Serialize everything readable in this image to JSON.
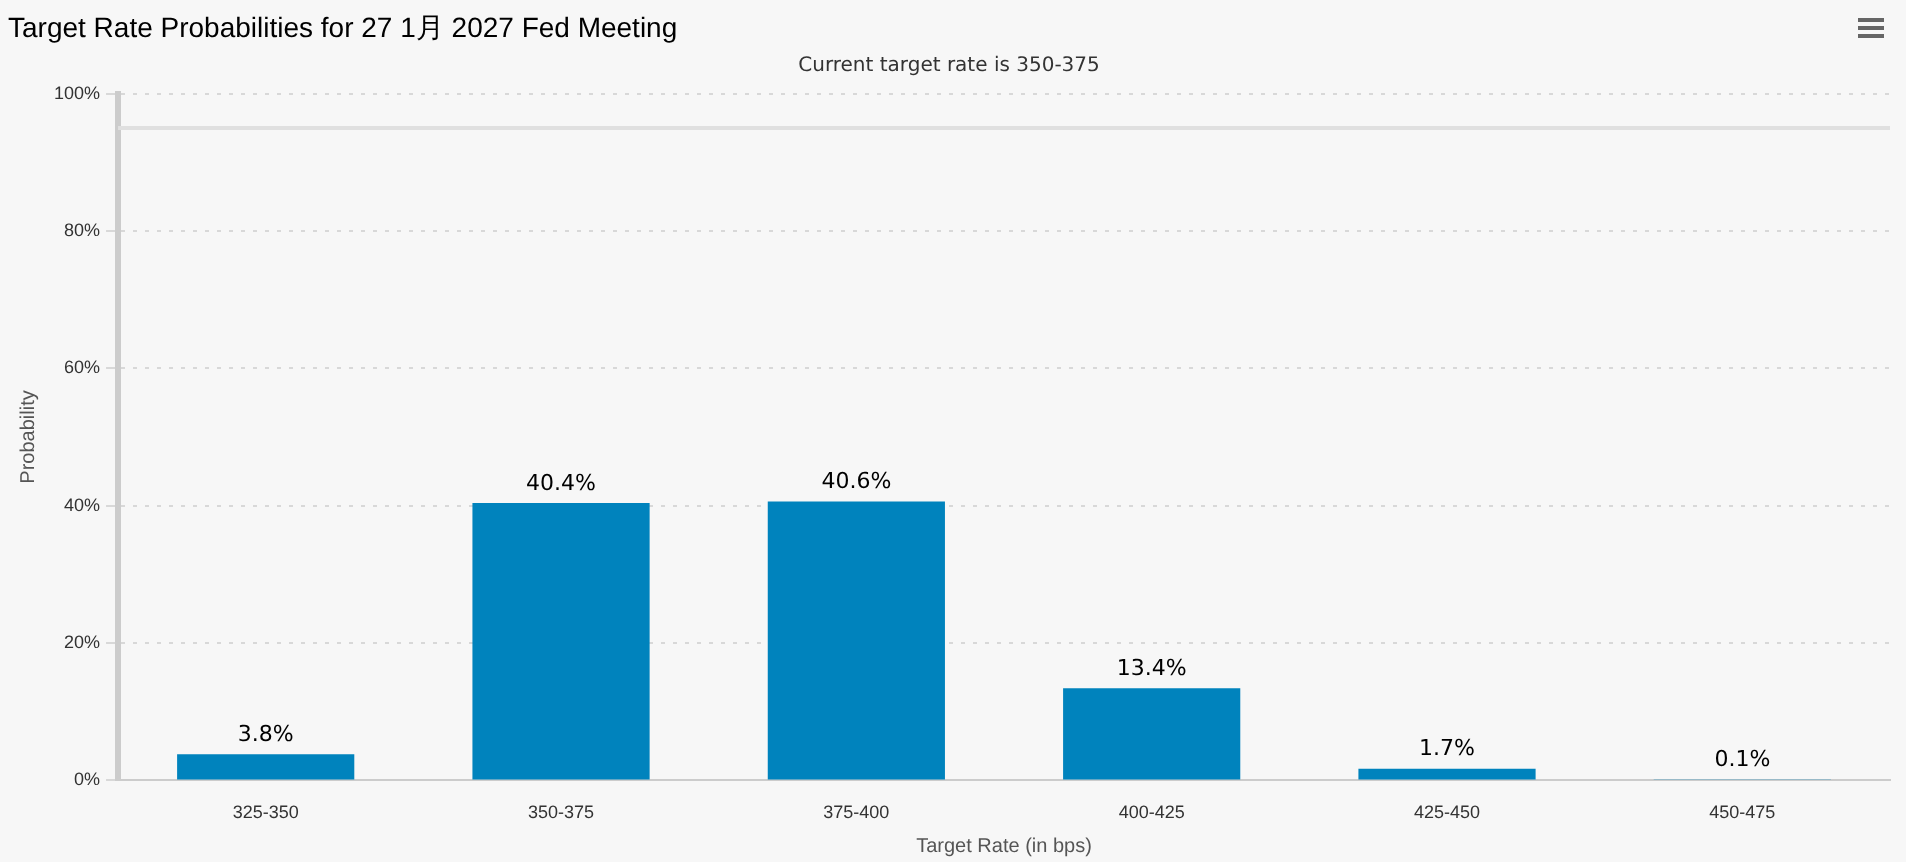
{
  "chart_data": {
    "type": "bar",
    "title": "Target Rate Probabilities for 27 1月 2027 Fed Meeting",
    "subtitle": "Current target rate is 350-375",
    "xlabel": "Target Rate (in bps)",
    "ylabel": "Probability",
    "categories": [
      "325-350",
      "350-375",
      "375-400",
      "400-425",
      "425-450",
      "450-475"
    ],
    "values": [
      3.8,
      40.4,
      40.6,
      13.4,
      1.7,
      0.1
    ],
    "value_labels": [
      "3.8%",
      "40.4%",
      "40.6%",
      "13.4%",
      "1.7%",
      "0.1%"
    ],
    "color": "#0083bd",
    "ylim": [
      0,
      100
    ],
    "yticks": [
      {
        "value": 0,
        "label": "0%"
      },
      {
        "value": 20,
        "label": "20%"
      },
      {
        "value": 40,
        "label": "40%"
      },
      {
        "value": 60,
        "label": "60%"
      },
      {
        "value": 80,
        "label": "80%"
      },
      {
        "value": 100,
        "label": "100%"
      }
    ],
    "ref_lines": [
      {
        "axis": "y",
        "value": 95,
        "color": "#e0e0e0"
      }
    ],
    "grid": "y",
    "legend": false
  }
}
